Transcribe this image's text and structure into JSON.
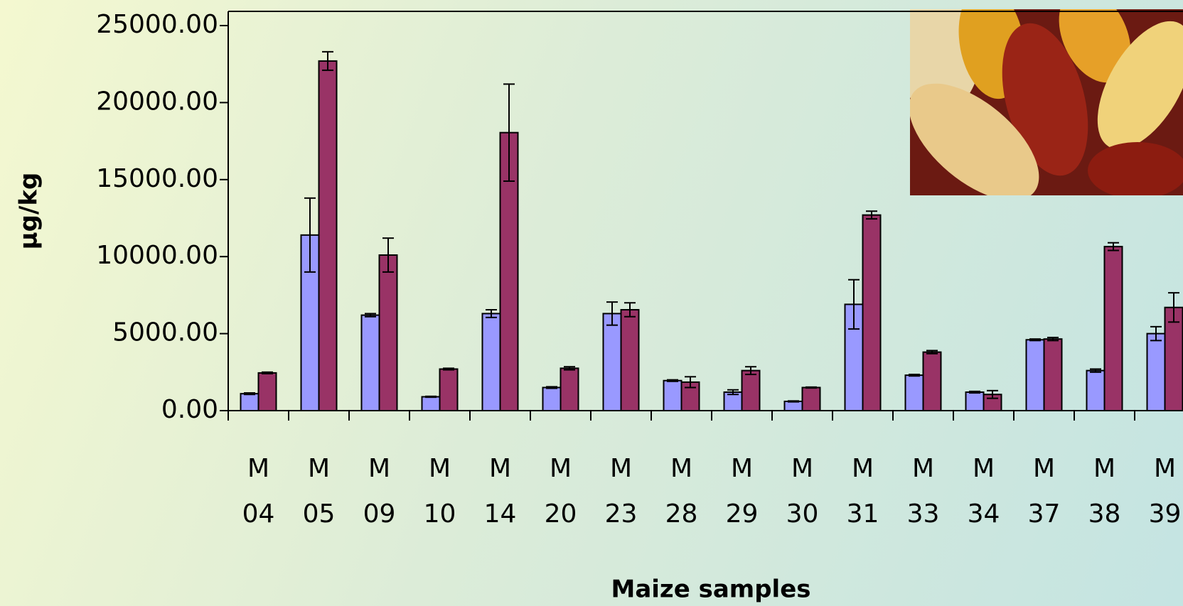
{
  "chart_data": {
    "type": "bar",
    "x_label": "Maize samples",
    "y_label": "µg/kg",
    "categories": [
      "M 04",
      "M 05",
      "M 09",
      "M 10",
      "M 14",
      "M 20",
      "M 23",
      "M 28",
      "M 29",
      "M 30",
      "M 31",
      "M 33",
      "M 34",
      "M 37",
      "M 38",
      "M 39"
    ],
    "series": [
      {
        "color": "#9999ff",
        "values": [
          1100,
          11400,
          6200,
          900,
          6300,
          1500,
          6300,
          1950,
          1200,
          600,
          6900,
          2300,
          1200,
          4600,
          2600,
          5000
        ],
        "errors": [
          50,
          2400,
          100,
          30,
          250,
          50,
          750,
          50,
          150,
          30,
          1600,
          50,
          50,
          50,
          100,
          450
        ]
      },
      {
        "color": "#993366",
        "values": [
          2450,
          22700,
          10100,
          2700,
          18050,
          2750,
          6550,
          1850,
          2600,
          1500,
          12700,
          3800,
          1050,
          4650,
          10650,
          6700
        ],
        "errors": [
          50,
          600,
          1100,
          50,
          3150,
          100,
          450,
          350,
          250,
          30,
          250,
          100,
          250,
          100,
          250,
          950
        ]
      }
    ],
    "ylim": [
      0,
      25000
    ],
    "yticks": [
      {
        "value": 0,
        "label": "0.00"
      },
      {
        "value": 5000,
        "label": "5000.00"
      },
      {
        "value": 10000,
        "label": "10000.00"
      },
      {
        "value": 15000,
        "label": "15000.00"
      },
      {
        "value": 20000,
        "label": "20000.00"
      },
      {
        "value": 25000,
        "label": "25000.00"
      }
    ],
    "grid": false
  }
}
